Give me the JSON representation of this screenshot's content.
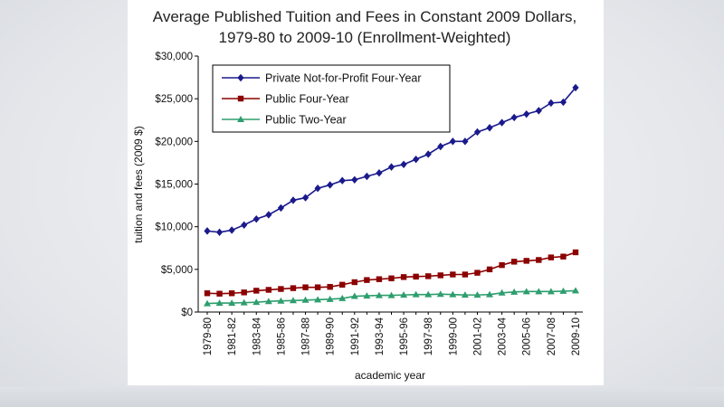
{
  "slide": {
    "background": "#e4e6ea"
  },
  "chart_data": {
    "type": "line",
    "title_line1": "Average Published Tuition and Fees in Constant 2009 Dollars,",
    "title_line2": "1979-80 to 2009-10 (Enrollment-Weighted)",
    "xlabel": "academic year",
    "ylabel": "tuition and fees (2009 $)",
    "ylim": [
      0,
      30000
    ],
    "yticks": [
      "$0",
      "$5,000",
      "$10,000",
      "$15,000",
      "$20,000",
      "$25,000",
      "$30,000"
    ],
    "x": [
      "1979-80",
      "1980-81",
      "1981-82",
      "1982-83",
      "1983-84",
      "1984-85",
      "1985-86",
      "1986-87",
      "1987-88",
      "1988-89",
      "1989-90",
      "1990-91",
      "1991-92",
      "1992-93",
      "1993-94",
      "1994-95",
      "1995-96",
      "1996-97",
      "1997-98",
      "1998-99",
      "1999-00",
      "2000-01",
      "2001-02",
      "2002-03",
      "2003-04",
      "2004-05",
      "2005-06",
      "2006-07",
      "2007-08",
      "2008-09",
      "2009-10"
    ],
    "xtick_labels": [
      "1979-80",
      "1981-82",
      "1983-84",
      "1985-86",
      "1987-88",
      "1989-90",
      "1991-92",
      "1993-94",
      "1995-96",
      "1997-98",
      "1999-00",
      "2001-02",
      "2003-04",
      "2005-06",
      "2007-08",
      "2009-10"
    ],
    "grid": false,
    "legend_position": "top-left",
    "series": [
      {
        "name": "Private Not-for-Profit Four-Year",
        "color": "#1a1a8c",
        "marker": "diamond",
        "values": [
          9500,
          9350,
          9600,
          10200,
          10900,
          11400,
          12200,
          13100,
          13400,
          14500,
          14900,
          15400,
          15500,
          15900,
          16300,
          17000,
          17300,
          17900,
          18500,
          19400,
          20000,
          20000,
          21100,
          21600,
          22200,
          22800,
          23200,
          23600,
          24500,
          24600,
          26300
        ]
      },
      {
        "name": "Public Four-Year",
        "color": "#8b0000",
        "marker": "square",
        "values": [
          2200,
          2150,
          2200,
          2300,
          2500,
          2600,
          2700,
          2800,
          2900,
          2900,
          2950,
          3200,
          3500,
          3750,
          3850,
          3950,
          4100,
          4150,
          4200,
          4300,
          4400,
          4400,
          4600,
          5000,
          5500,
          5900,
          6000,
          6100,
          6400,
          6500,
          7000
        ]
      },
      {
        "name": "Public Two-Year",
        "color": "#2e9e6e",
        "marker": "triangle",
        "values": [
          1000,
          1050,
          1050,
          1100,
          1150,
          1250,
          1300,
          1350,
          1400,
          1450,
          1500,
          1600,
          1850,
          1900,
          1950,
          1950,
          2000,
          2050,
          2050,
          2100,
          2050,
          2000,
          2000,
          2050,
          2250,
          2350,
          2400,
          2400,
          2400,
          2450,
          2500
        ]
      }
    ]
  }
}
